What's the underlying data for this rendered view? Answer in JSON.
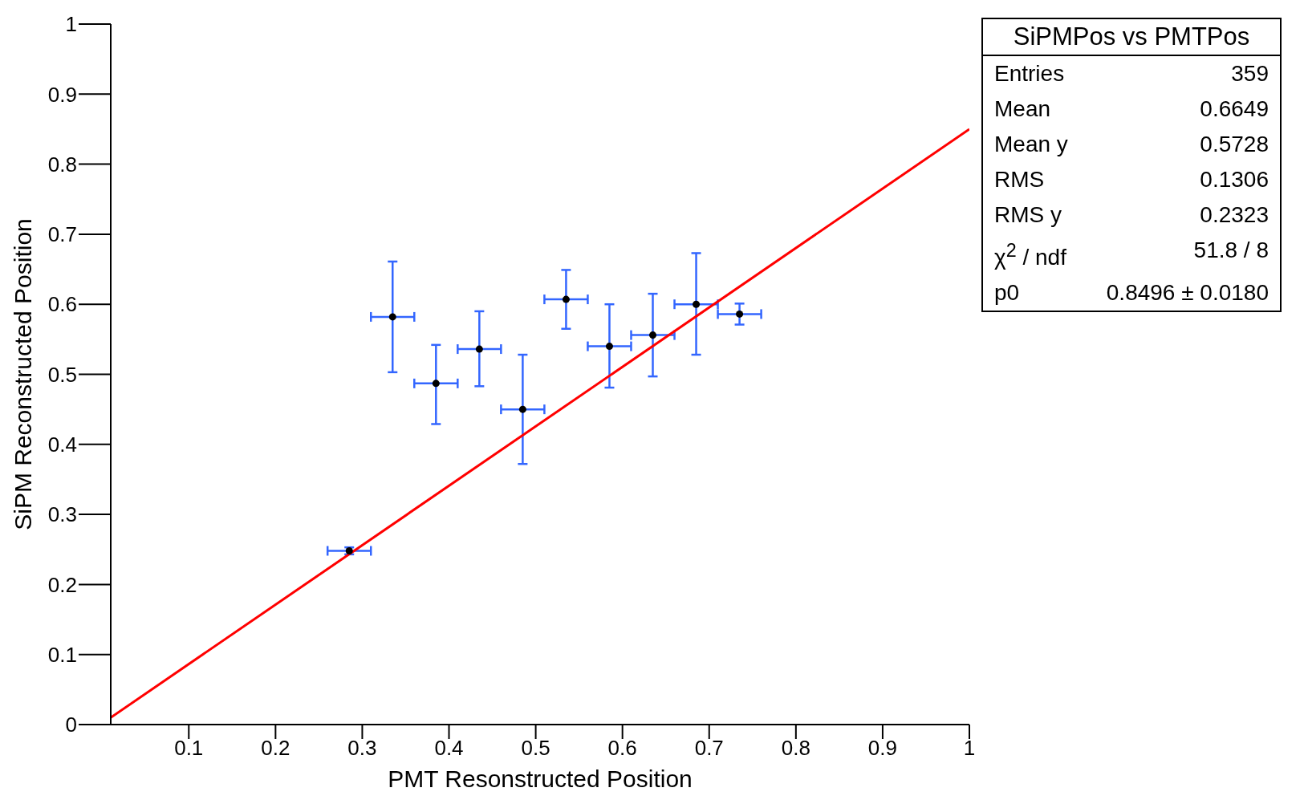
{
  "chart_data": {
    "type": "scatter",
    "title": "SiPMPos vs PMTPos",
    "xlabel": "PMT Resonstructed Position",
    "ylabel": "SiPM Reconstructed Position",
    "xlim": [
      0.01,
      1
    ],
    "xticks": [
      0.1,
      0.2,
      0.3,
      0.4,
      0.5,
      0.6,
      0.7,
      0.8,
      0.9,
      1
    ],
    "ylim": [
      0,
      1
    ],
    "yticks": [
      0,
      0.1,
      0.2,
      0.3,
      0.4,
      0.5,
      0.6,
      0.7,
      0.8,
      0.9,
      1
    ],
    "series": [
      {
        "marker": "circle",
        "color": "#000000",
        "x": [
          0.285,
          0.335,
          0.385,
          0.435,
          0.485,
          0.535,
          0.585,
          0.635,
          0.685,
          0.735
        ],
        "values": [
          0.248,
          0.582,
          0.487,
          0.536,
          0.45,
          0.607,
          0.54,
          0.556,
          0.6,
          0.586
        ],
        "errors": [
          0.005,
          [
            0.503,
            0.661
          ],
          [
            0.429,
            0.542
          ],
          [
            0.483,
            0.59
          ],
          [
            0.372,
            0.528
          ],
          [
            0.565,
            0.649
          ],
          [
            0.481,
            0.6
          ],
          [
            0.497,
            0.615
          ],
          [
            0.528,
            0.673
          ],
          [
            0.571,
            0.601
          ]
        ],
        "xerrors": [
          0.025,
          0.025,
          0.025,
          0.025,
          0.025,
          0.025,
          0.025,
          0.025,
          0.025,
          0.025
        ]
      },
      {
        "type": "line",
        "color": "#ff0000",
        "x": [
          0.01,
          1
        ],
        "values": [
          0.01,
          0.85
        ]
      }
    ],
    "annotations": [
      "Entries",
      "359",
      "Mean",
      "0.6649",
      "Mean y",
      "0.5728",
      "RMS",
      "0.1306",
      "RMS y",
      "0.2323",
      "χ$^{2}$ / ndf",
      "51.8 / 8",
      "p0",
      "0.8496 ± 0.0180"
    ]
  }
}
